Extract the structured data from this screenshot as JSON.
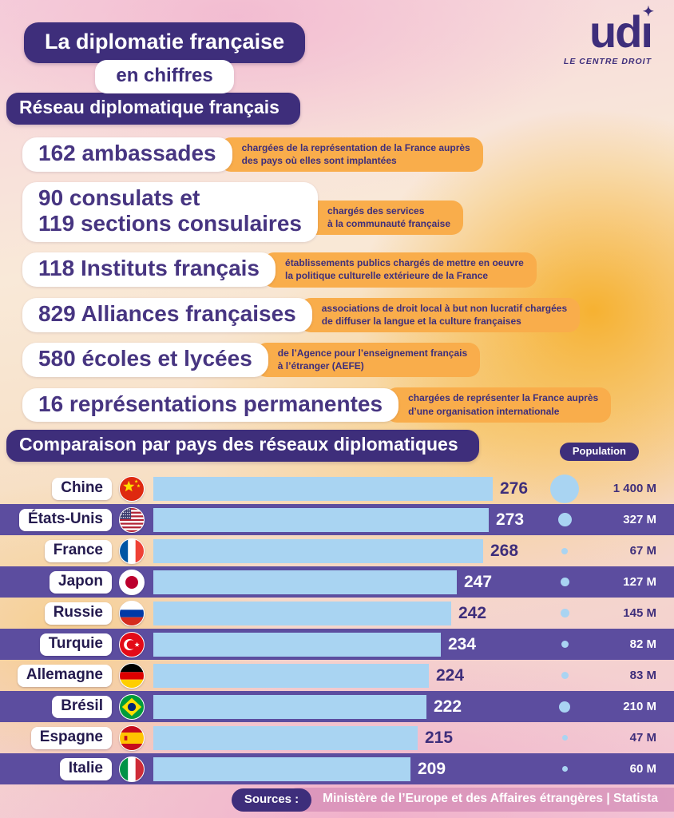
{
  "colors": {
    "dark_purple": "#3E2E7B",
    "band_purple": "#5C4D9F",
    "bar_blue": "#A9D4F2",
    "orange": "#F9AD4B"
  },
  "header": {
    "title_line1": "La diplomatie française",
    "title_line2": "en chiffres",
    "logo": {
      "text": "udi",
      "star": "✦",
      "tagline": "LE CENTRE DROIT"
    }
  },
  "network_section": {
    "title": "Réseau diplomatique français",
    "items": [
      {
        "stat_lines": [
          "162 ambassades"
        ],
        "desc_lines": [
          "chargées de la représentation de la France auprès",
          "des pays où elles sont implantées"
        ]
      },
      {
        "stat_lines": [
          "90 consulats et",
          "119 sections consulaires"
        ],
        "desc_lines": [
          "chargés des services",
          "à la communauté française"
        ]
      },
      {
        "stat_lines": [
          "118 Instituts français"
        ],
        "desc_lines": [
          "établissements publics chargés de mettre en oeuvre",
          "la politique culturelle extérieure de la France"
        ]
      },
      {
        "stat_lines": [
          "829 Alliances françaises"
        ],
        "desc_lines": [
          "associations de droit local à but non lucratif chargées",
          "de diffuser la langue et la culture françaises"
        ]
      },
      {
        "stat_lines": [
          "580 écoles et lycées"
        ],
        "desc_lines": [
          "de l’Agence pour l’enseignement français",
          "à l’étranger (AEFE)"
        ]
      },
      {
        "stat_lines": [
          "16 représentations permanentes"
        ],
        "desc_lines": [
          "chargées de représenter la France auprès",
          "d’une organisation internationale"
        ]
      }
    ]
  },
  "chart_data": {
    "type": "bar",
    "title": "Comparaison par pays des réseaux diplomatiques",
    "population_column_label": "Population",
    "value_max": 276,
    "rows": [
      {
        "country": "Chine",
        "flag": "cn",
        "value": 276,
        "population_m": 1400,
        "population_label": "1 400 M",
        "band": false
      },
      {
        "country": "États-Unis",
        "flag": "us",
        "value": 273,
        "population_m": 327,
        "population_label": "327 M",
        "band": true
      },
      {
        "country": "France",
        "flag": "fr",
        "value": 268,
        "population_m": 67,
        "population_label": "67 M",
        "band": false
      },
      {
        "country": "Japon",
        "flag": "jp",
        "value": 247,
        "population_m": 127,
        "population_label": "127 M",
        "band": true
      },
      {
        "country": "Russie",
        "flag": "ru",
        "value": 242,
        "population_m": 145,
        "population_label": "145 M",
        "band": false
      },
      {
        "country": "Turquie",
        "flag": "tr",
        "value": 234,
        "population_m": 82,
        "population_label": "82 M",
        "band": true
      },
      {
        "country": "Allemagne",
        "flag": "de",
        "value": 224,
        "population_m": 83,
        "population_label": "83 M",
        "band": false
      },
      {
        "country": "Brésil",
        "flag": "br",
        "value": 222,
        "population_m": 210,
        "population_label": "210 M",
        "band": true
      },
      {
        "country": "Espagne",
        "flag": "es",
        "value": 215,
        "population_m": 47,
        "population_label": "47 M",
        "band": false
      },
      {
        "country": "Italie",
        "flag": "it",
        "value": 209,
        "population_m": 60,
        "population_label": "60 M",
        "band": true
      }
    ]
  },
  "footer": {
    "sources_label": "Sources :",
    "sources_text": "Ministère de l’Europe et des Affaires étrangères | Statista"
  }
}
